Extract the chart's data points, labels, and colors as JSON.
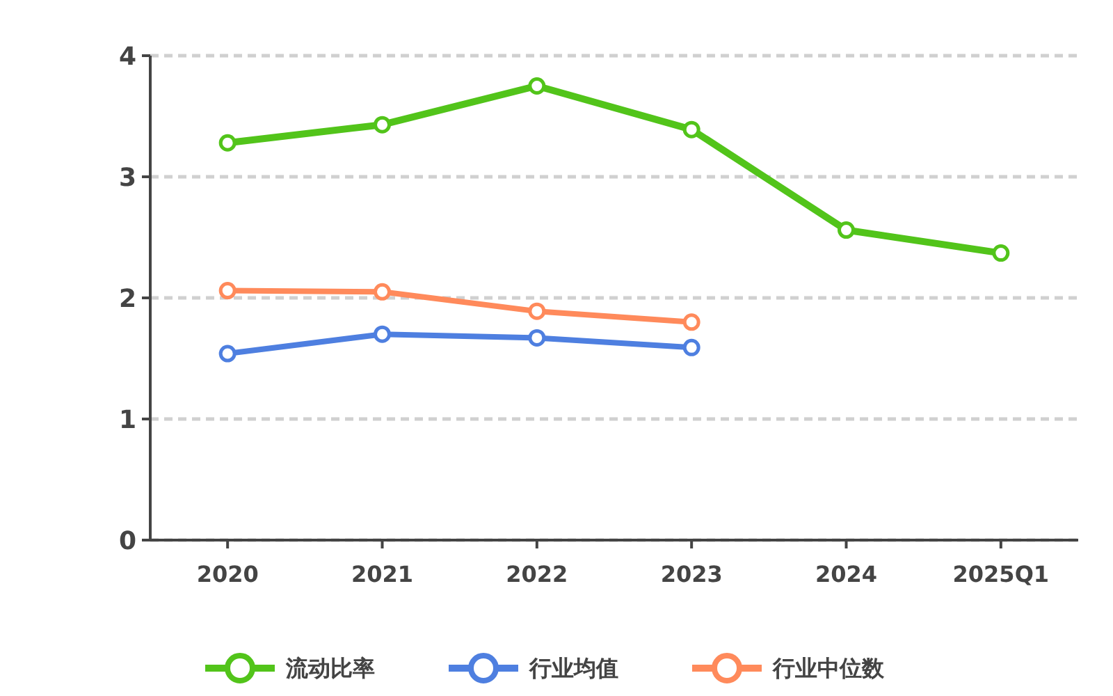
{
  "chart_data": {
    "type": "line",
    "categories": [
      "2020",
      "2021",
      "2022",
      "2023",
      "2024",
      "2025Q1"
    ],
    "series": [
      {
        "name": "流动比率",
        "color": "#52c41a",
        "values": [
          3.28,
          3.43,
          3.75,
          3.39,
          2.56,
          2.37
        ]
      },
      {
        "name": "行业均值",
        "color": "#4e7fe0",
        "values": [
          1.54,
          1.7,
          1.67,
          1.59,
          null,
          null
        ]
      },
      {
        "name": "行业中位数",
        "color": "#ff8a5b",
        "values": [
          2.06,
          2.05,
          1.89,
          1.8,
          null,
          null
        ]
      }
    ],
    "ylim": [
      0,
      4
    ],
    "yticks": [
      0,
      1,
      2,
      3,
      4
    ],
    "grid": "y",
    "legend": "bottom",
    "marker": "circle",
    "line_style": "solid"
  }
}
